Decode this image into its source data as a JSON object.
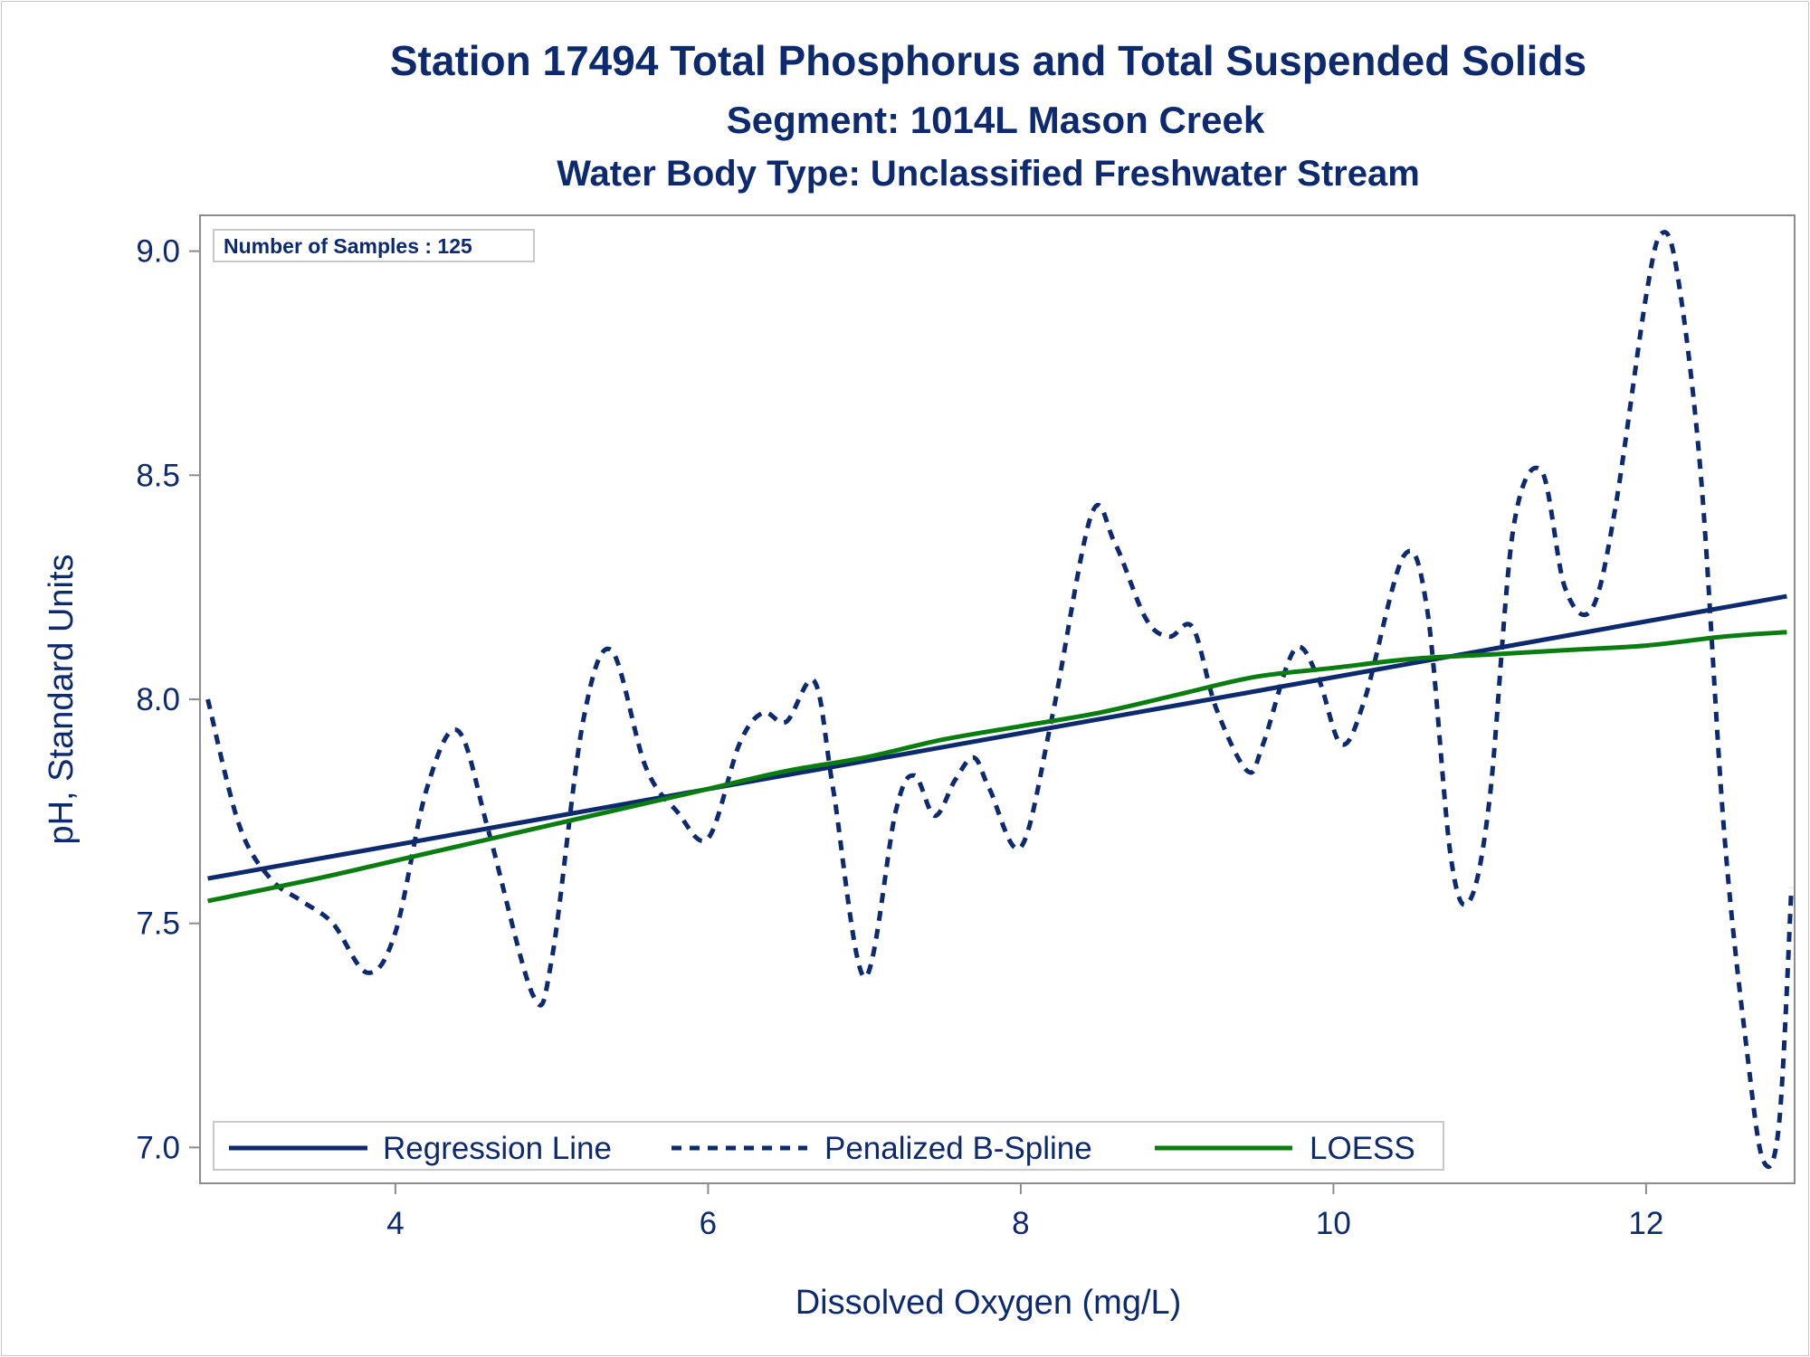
{
  "titles": {
    "line1": "Station 17494  Total Phosphorus and Total Suspended Solids",
    "line2": "Segment: 1014L  Mason Creek",
    "line3": "Water Body Type: Unclassified Freshwater Stream"
  },
  "inset": {
    "samples_label": "Number of Samples : 125"
  },
  "legend": {
    "regression": "Regression Line",
    "spline": "Penalized B-Spline",
    "loess": "LOESS"
  },
  "colors": {
    "navy": "#0d2a6e",
    "green": "#0a7d10",
    "frame": "#8c8c8c"
  },
  "chart_data": {
    "type": "line",
    "xlabel": "Dissolved Oxygen (mg/L)",
    "ylabel": "pH, Standard Units",
    "xlim": [
      2.75,
      12.95
    ],
    "ylim": [
      6.92,
      9.08
    ],
    "xticks": [
      4,
      6,
      8,
      10,
      12
    ],
    "xtick_labels": [
      "4",
      "6",
      "8",
      "10",
      "12"
    ],
    "yticks": [
      7.0,
      7.5,
      8.0,
      8.5,
      9.0
    ],
    "ytick_labels": [
      "7.0",
      "7.5",
      "8.0",
      "8.5",
      "9.0"
    ],
    "grid": false,
    "legend_position": "bottom",
    "n_samples": 125,
    "series": [
      {
        "name": "Regression Line",
        "style": "solid",
        "color": "#0d2a6e",
        "x": [
          2.8,
          12.9
        ],
        "y": [
          7.6,
          8.23
        ]
      },
      {
        "name": "Penalized B-Spline",
        "style": "dashed",
        "color": "#0d2a6e",
        "x": [
          2.8,
          3.0,
          3.2,
          3.4,
          3.6,
          3.82,
          4.0,
          4.2,
          4.4,
          4.6,
          4.88,
          5.0,
          5.2,
          5.38,
          5.6,
          5.8,
          6.0,
          6.2,
          6.35,
          6.5,
          6.68,
          6.8,
          7.0,
          7.2,
          7.32,
          7.45,
          7.58,
          7.7,
          7.8,
          8.0,
          8.2,
          8.45,
          8.6,
          8.8,
          8.95,
          9.1,
          9.25,
          9.45,
          9.55,
          9.75,
          9.9,
          10.05,
          10.2,
          10.45,
          10.6,
          10.75,
          10.87,
          11.0,
          11.15,
          11.33,
          11.48,
          11.65,
          11.8,
          12.0,
          12.1,
          12.2,
          12.35,
          12.5,
          12.65,
          12.75,
          12.85,
          12.93
        ],
        "y": [
          8.0,
          7.72,
          7.6,
          7.55,
          7.5,
          7.39,
          7.48,
          7.8,
          7.93,
          7.7,
          7.34,
          7.42,
          7.95,
          8.11,
          7.85,
          7.75,
          7.69,
          7.9,
          7.97,
          7.95,
          8.04,
          7.8,
          7.38,
          7.75,
          7.83,
          7.74,
          7.82,
          7.87,
          7.8,
          7.67,
          7.96,
          8.41,
          8.35,
          8.18,
          8.14,
          8.16,
          7.98,
          7.84,
          7.9,
          8.11,
          8.05,
          7.9,
          8.0,
          8.32,
          8.2,
          7.65,
          7.55,
          7.78,
          8.38,
          8.51,
          8.25,
          8.2,
          8.42,
          8.9,
          9.04,
          8.95,
          8.5,
          7.7,
          7.2,
          6.97,
          7.05,
          7.58
        ]
      },
      {
        "name": "LOESS",
        "style": "solid",
        "color": "#0a7d10",
        "x": [
          2.8,
          3.5,
          4.0,
          4.5,
          5.0,
          5.5,
          6.0,
          6.5,
          7.0,
          7.5,
          8.0,
          8.5,
          9.0,
          9.5,
          10.0,
          10.5,
          11.0,
          11.5,
          12.0,
          12.5,
          12.9
        ],
        "y": [
          7.55,
          7.6,
          7.64,
          7.68,
          7.72,
          7.76,
          7.8,
          7.84,
          7.87,
          7.91,
          7.94,
          7.97,
          8.01,
          8.05,
          8.07,
          8.09,
          8.1,
          8.11,
          8.12,
          8.14,
          8.15
        ]
      }
    ]
  }
}
